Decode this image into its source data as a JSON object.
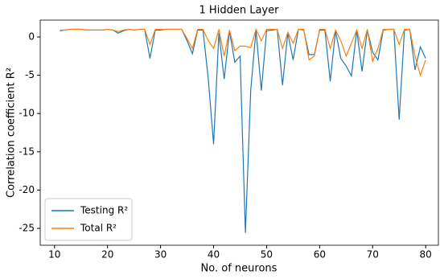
{
  "chart_data": {
    "type": "line",
    "title": "1 Hidden Layer",
    "x_label": "No. of neurons",
    "y_label": "Correlation coefficient R²",
    "x": [
      11,
      12,
      13,
      14,
      15,
      16,
      17,
      18,
      19,
      20,
      21,
      22,
      23,
      24,
      25,
      26,
      27,
      28,
      29,
      30,
      31,
      32,
      33,
      34,
      35,
      36,
      37,
      38,
      39,
      40,
      41,
      42,
      43,
      44,
      45,
      46,
      47,
      48,
      49,
      50,
      51,
      52,
      53,
      54,
      55,
      56,
      57,
      58,
      59,
      60,
      61,
      62,
      63,
      64,
      65,
      66,
      67,
      68,
      69,
      70,
      71,
      72,
      73,
      74,
      75,
      76,
      77,
      78,
      79,
      80
    ],
    "series": [
      {
        "name": "Testing R²",
        "color": "#1f77b4",
        "values": [
          0.8,
          0.9,
          1,
          1,
          1,
          0.9,
          0.9,
          0.9,
          0.9,
          1,
          0.9,
          0.5,
          0.8,
          1,
          0.9,
          1,
          1,
          -2.8,
          0.9,
          0.9,
          1,
          1,
          1,
          1,
          -0.5,
          -2.2,
          0.9,
          0.9,
          -5.5,
          -14,
          0.5,
          -5.5,
          0.8,
          -3.3,
          -2.5,
          -25.6,
          -7,
          0.9,
          -7,
          0.8,
          0.9,
          1,
          -6.3,
          0.5,
          -3,
          1,
          0.9,
          -2.3,
          -2.3,
          0.9,
          0.9,
          -5.8,
          0.8,
          -2.8,
          -3.8,
          -5.1,
          0.9,
          -4.5,
          0.9,
          -2,
          -3,
          0.9,
          1,
          1,
          -10.8,
          0.9,
          1,
          -4.3,
          -1.3,
          -2.8
        ]
      },
      {
        "name": "Total R²",
        "color": "#ff7f0e",
        "values": [
          0.9,
          0.9,
          1,
          1,
          1,
          0.9,
          0.9,
          0.9,
          0.9,
          1,
          0.9,
          0.7,
          0.9,
          1,
          0.9,
          1,
          1,
          -1,
          1,
          1,
          1,
          1,
          1,
          1,
          -0.2,
          -1.5,
          1,
          1,
          -0.5,
          -1.5,
          1,
          -2.5,
          0.9,
          -1.8,
          -1.2,
          -1.2,
          -1.4,
          1,
          -0.5,
          1,
          1,
          1,
          -1.5,
          0.6,
          -0.8,
          1,
          1,
          -3,
          -2.5,
          1,
          1,
          -1.5,
          0.9,
          -0.5,
          -2.5,
          -0.8,
          0.9,
          -1.5,
          1,
          -3.2,
          -1.5,
          1,
          1,
          1,
          -1,
          1,
          1,
          -2.5,
          -5,
          -3
        ]
      }
    ],
    "xlim": [
      7.3,
      82.4
    ],
    "ylim": [
      -27.2,
      2.2
    ],
    "xticks": [
      10,
      20,
      30,
      40,
      50,
      60,
      70,
      80
    ],
    "yticks": [
      0,
      -5,
      -10,
      -15,
      -20,
      -25
    ],
    "legend": "lower left"
  }
}
